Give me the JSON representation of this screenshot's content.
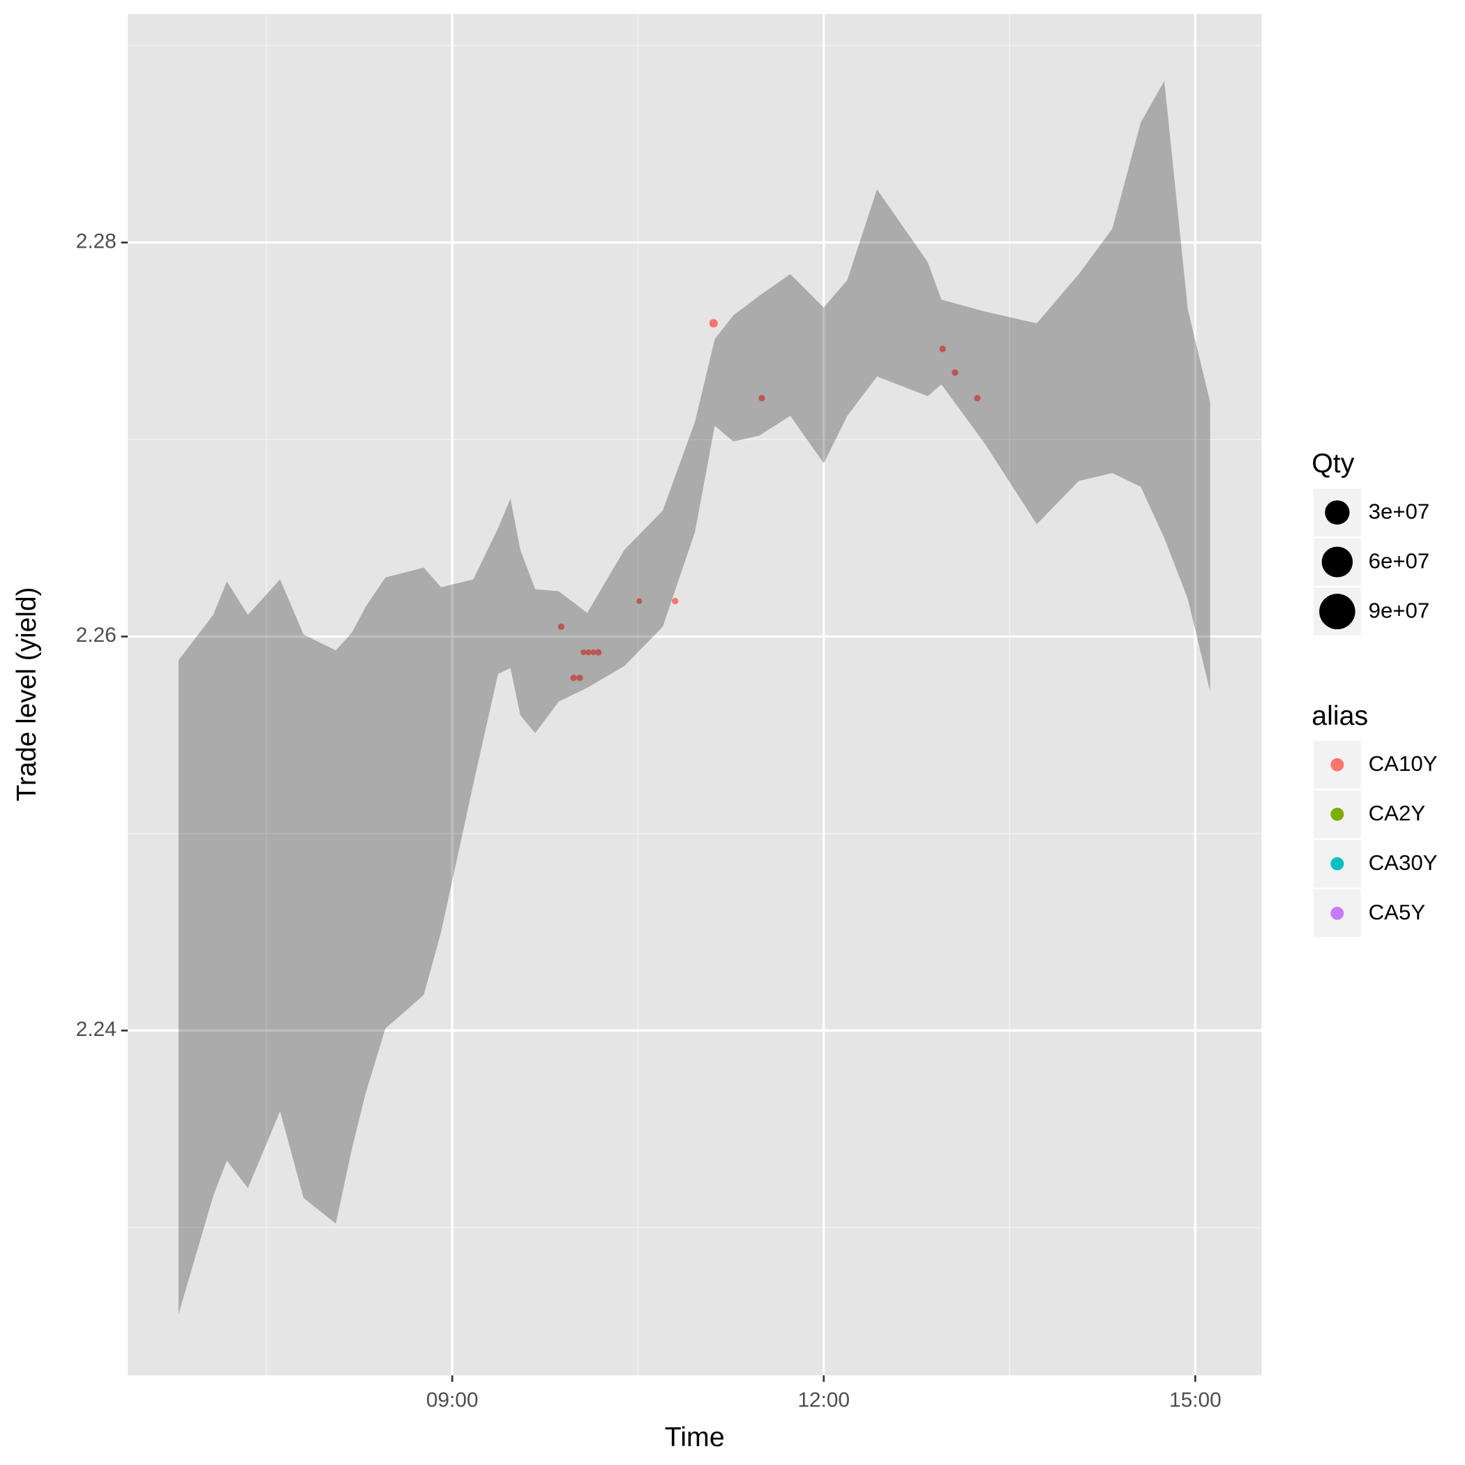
{
  "chart_data": {
    "type": "scatter",
    "x_label": "Time",
    "y_label": "Trade level (yield)",
    "xlim": [
      6.38,
      15.535
    ],
    "ylim": [
      2.2225,
      2.2916
    ],
    "xticks": [
      {
        "value": 9,
        "label": "09:00"
      },
      {
        "value": 12,
        "label": "12:00"
      },
      {
        "value": 15,
        "label": "15:00"
      }
    ],
    "x_minor_grid": [
      7.5,
      10.5,
      13.5
    ],
    "yticks": [
      2.24,
      2.26,
      2.28
    ],
    "y_minor_grid": [
      2.23,
      2.25,
      2.27,
      2.29
    ],
    "grid": true,
    "ribbon": {
      "color": "#000000",
      "x": [
        6.79,
        7.07,
        7.18,
        7.35,
        7.61,
        7.8,
        8.06,
        8.19,
        8.3,
        8.46,
        8.77,
        8.91,
        9.17,
        9.37,
        9.47,
        9.55,
        9.67,
        9.86,
        10.09,
        10.39,
        10.7,
        10.96,
        11.12,
        11.27,
        11.48,
        11.73,
        12.0,
        12.19,
        12.43,
        12.84,
        12.95,
        13.3,
        13.72,
        14.06,
        14.33,
        14.56,
        14.75,
        14.94,
        15.12
      ],
      "ymin": [
        2.2256,
        2.2316,
        2.2334,
        2.232,
        2.2359,
        2.2315,
        2.2302,
        2.234,
        2.2368,
        2.2401,
        2.2418,
        2.245,
        2.2525,
        2.2581,
        2.2584,
        2.256,
        2.2551,
        2.2567,
        2.2574,
        2.2585,
        2.2605,
        2.2653,
        2.2707,
        2.2699,
        2.2702,
        2.2712,
        2.2688,
        2.2712,
        2.2732,
        2.2722,
        2.2728,
        2.2698,
        2.2657,
        2.2679,
        2.2683,
        2.2676,
        2.265,
        2.2619,
        2.2572
      ],
      "ymax": [
        2.2588,
        2.2611,
        2.2628,
        2.2611,
        2.2629,
        2.2601,
        2.2593,
        2.2602,
        2.2615,
        2.263,
        2.2635,
        2.2625,
        2.2629,
        2.2655,
        2.267,
        2.2644,
        2.2624,
        2.2623,
        2.2612,
        2.2644,
        2.2664,
        2.2709,
        2.2751,
        2.2763,
        2.2773,
        2.2784,
        2.2767,
        2.2781,
        2.2827,
        2.279,
        2.2771,
        2.2765,
        2.2759,
        2.2784,
        2.2807,
        2.2861,
        2.2882,
        2.2766,
        2.2719
      ]
    },
    "size_legend_title": "Qty",
    "size_legend": [
      {
        "value": 30000000,
        "label": "3e+07"
      },
      {
        "value": 60000000,
        "label": "6e+07"
      },
      {
        "value": 90000000,
        "label": "9e+07"
      }
    ],
    "color_legend_title": "alias",
    "series": [
      {
        "name": "CA10Y",
        "color": "#F8766D",
        "x": [
          9.88,
          9.98,
          10.03,
          10.06,
          10.1,
          10.14,
          10.18,
          10.51,
          10.8,
          11.11,
          11.5,
          12.96,
          13.06,
          13.24
        ],
        "values": [
          2.2605,
          2.2579,
          2.2579,
          2.2592,
          2.2592,
          2.2592,
          2.2592,
          2.2618,
          2.2618,
          2.2759,
          2.2721,
          2.2746,
          2.2734,
          2.2721
        ],
        "qty": [
          2000000,
          2000000,
          2000000,
          1000000,
          1000000,
          1000000,
          2000000,
          100000,
          2000000,
          8000000,
          2000000,
          2000000,
          2000000,
          2000000
        ]
      },
      {
        "name": "CA2Y",
        "color": "#7CAE00",
        "x": [],
        "values": [],
        "qty": []
      },
      {
        "name": "CA30Y",
        "color": "#00BFC4",
        "x": [],
        "values": [],
        "qty": []
      },
      {
        "name": "CA5Y",
        "color": "#C77CFF",
        "x": [],
        "values": [],
        "qty": []
      }
    ]
  }
}
